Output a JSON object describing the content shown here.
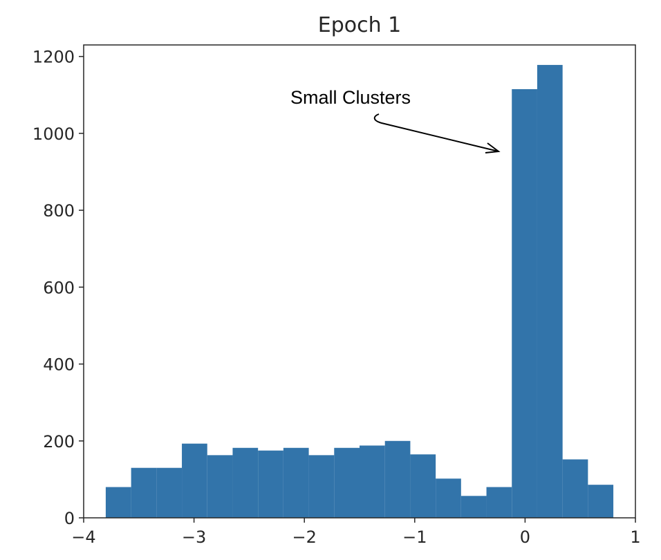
{
  "chart_data": {
    "type": "bar",
    "title": "Epoch 1",
    "xlabel": "",
    "ylabel": "",
    "xlim": [
      -4,
      1
    ],
    "ylim": [
      0,
      1230
    ],
    "grid": false,
    "bar_color": "#3274aa",
    "bin_edges": [
      -3.8,
      -3.57,
      -3.34,
      -3.11,
      -2.88,
      -2.65,
      -2.42,
      -2.19,
      -1.96,
      -1.73,
      -1.5,
      -1.27,
      -1.04,
      -0.81,
      -0.58,
      -0.35,
      -0.12,
      0.11,
      0.34,
      0.57,
      0.8
    ],
    "values": [
      80,
      130,
      130,
      193,
      163,
      182,
      175,
      182,
      163,
      182,
      188,
      200,
      165,
      102,
      57,
      80,
      1115,
      1178,
      152,
      86
    ],
    "x_ticks": [
      {
        "value": -4,
        "label": "−4"
      },
      {
        "value": -3,
        "label": "−3"
      },
      {
        "value": -2,
        "label": "−2"
      },
      {
        "value": -1,
        "label": "−1"
      },
      {
        "value": 0,
        "label": "0"
      },
      {
        "value": 1,
        "label": "1"
      }
    ],
    "y_ticks": [
      {
        "value": 0,
        "label": "0"
      },
      {
        "value": 200,
        "label": "200"
      },
      {
        "value": 400,
        "label": "400"
      },
      {
        "value": 600,
        "label": "600"
      },
      {
        "value": 800,
        "label": "800"
      },
      {
        "value": 1000,
        "label": "1000"
      },
      {
        "value": 1200,
        "label": "1200"
      }
    ],
    "annotations": [
      {
        "text": "Small Clusters",
        "points_to": {
          "x": -0.2,
          "y": 960
        }
      }
    ]
  }
}
